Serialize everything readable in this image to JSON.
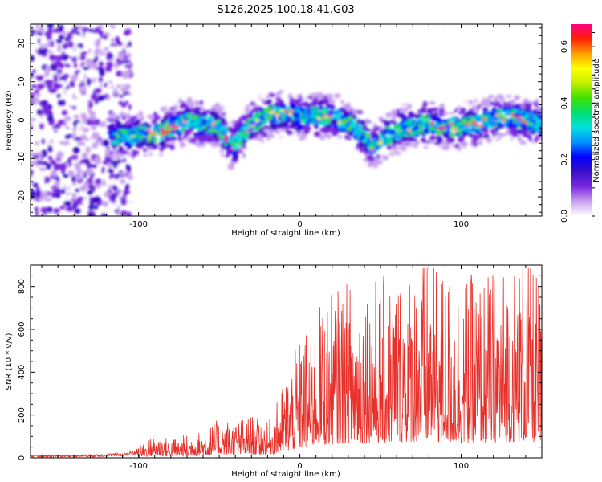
{
  "figure_title": "S126.2025.100.18.41.G03",
  "chart_data": [
    {
      "type": "heatmap",
      "xlabel": "Height of straight line (km)",
      "ylabel": "Frequency (Hz)",
      "xlim": [
        -167,
        150
      ],
      "ylim": [
        -25,
        25
      ],
      "xticks": [
        -100,
        0,
        100
      ],
      "yticks": [
        -20,
        -10,
        0,
        10,
        20
      ],
      "grid": false,
      "colorbar": {
        "label": "Normalized spectral amplitude",
        "range": [
          0.0,
          0.68
        ],
        "ticks": [
          0.0,
          0.2,
          0.4,
          0.6
        ],
        "colormap": [
          "#ffffff",
          "#c8a0f0",
          "#7a28e0",
          "#3a10c8",
          "#0000ff",
          "#0090ff",
          "#00e0e0",
          "#00e070",
          "#40e000",
          "#c0f000",
          "#ffff00",
          "#ffa000",
          "#ff2000",
          "#ff0080"
        ]
      },
      "ridge": {
        "x": [
          -115,
          -100,
          -85,
          -70,
          -60,
          -50,
          -42,
          -30,
          -20,
          -10,
          0,
          10,
          20,
          30,
          40,
          45,
          55,
          65,
          80,
          95,
          110,
          125,
          140,
          150
        ],
        "y": [
          -4,
          -4,
          -3,
          0,
          -1,
          -2,
          -7,
          -1,
          1,
          2,
          1,
          1,
          1,
          -1,
          -4,
          -7,
          -4,
          -2,
          -1,
          -2,
          -1,
          1,
          0,
          -1
        ]
      }
    },
    {
      "type": "line",
      "xlabel": "Height of straight line (km)",
      "ylabel": "SNR (10 * v/v)",
      "xlim": [
        -167,
        150
      ],
      "ylim": [
        0,
        900
      ],
      "xticks": [
        -100,
        0,
        100
      ],
      "yticks": [
        0,
        200,
        400,
        600,
        800
      ],
      "grid": false,
      "series_color": "#e8302a",
      "envelope": {
        "x": [
          -167,
          -130,
          -110,
          -100,
          -95,
          -90,
          -80,
          -60,
          -50,
          -40,
          -30,
          -20,
          -15,
          -10,
          0,
          10,
          20,
          30,
          40,
          50,
          60,
          70,
          80,
          90,
          100,
          110,
          120,
          130,
          140,
          150
        ],
        "y": [
          8,
          10,
          15,
          30,
          45,
          60,
          50,
          70,
          100,
          95,
          110,
          90,
          130,
          200,
          300,
          380,
          420,
          450,
          470,
          460,
          480,
          500,
          520,
          480,
          470,
          460,
          480,
          500,
          520,
          450
        ]
      }
    }
  ]
}
